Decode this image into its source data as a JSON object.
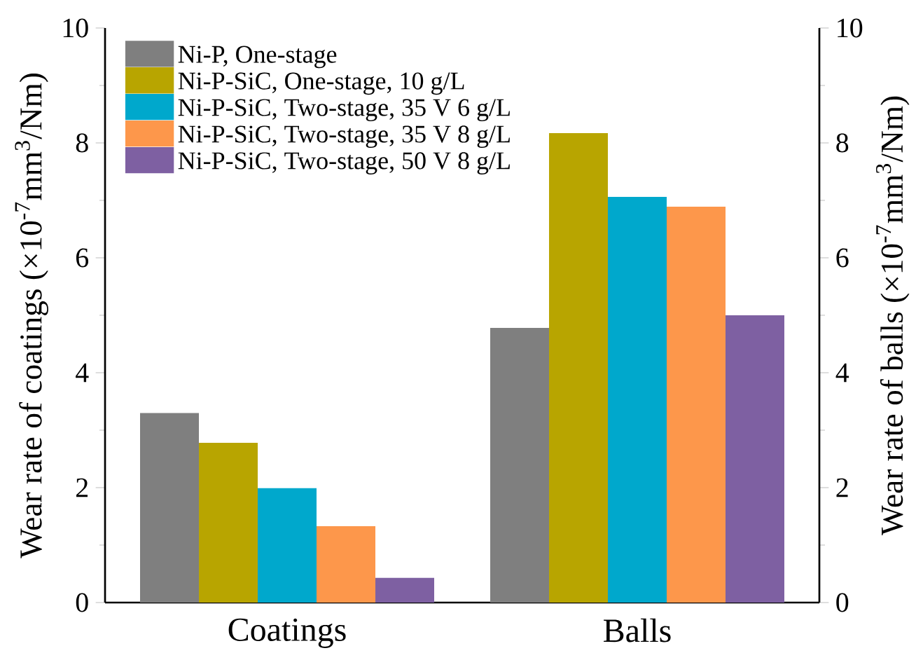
{
  "chart_data": {
    "type": "bar",
    "xlabel": null,
    "ylabel": "Wear rate of coatings (×10$^{-7}$mm$^{3}$/Nm)",
    "y2label": "Wear rate of balls (×10$^{-7}$mm$^{3}$/Nm)",
    "categories": [
      "Coatings",
      "Balls"
    ],
    "series": [
      {
        "name": "Ni-P, One-stage",
        "color": "#7f7f7f",
        "values": [
          3.3,
          4.78
        ]
      },
      {
        "name": "Ni-P-SiC, One-stage, 10 g/L",
        "color": "#b8a500",
        "values": [
          2.78,
          8.17
        ]
      },
      {
        "name": "Ni-P-SiC, Two-stage, 35 V 6 g/L",
        "color": "#00a8cc",
        "values": [
          1.99,
          7.06
        ]
      },
      {
        "name": "Ni-P-SiC, Two-stage, 35 V 8 g/L",
        "color": "#fd974b",
        "values": [
          1.33,
          6.89
        ]
      },
      {
        "name": "Ni-P-SiC, Two-stage, 50 V 8 g/L",
        "color": "#7e60a2",
        "values": [
          0.43,
          5.0
        ]
      }
    ],
    "ylim": [
      0,
      10
    ],
    "yticks": [
      0,
      2,
      4,
      6,
      8,
      10
    ],
    "y2lim": [
      0,
      10
    ],
    "y2ticks": [
      0,
      2,
      4,
      6,
      8,
      10
    ],
    "legend": "top left",
    "grid": false
  }
}
